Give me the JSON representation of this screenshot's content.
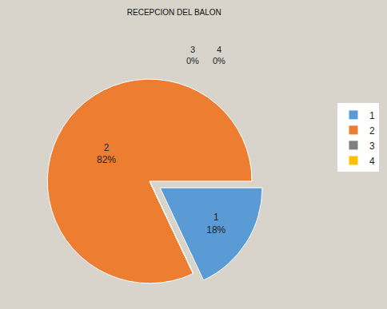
{
  "chart_data": {
    "type": "pie",
    "title": "RECEPCION DEL BALON",
    "categories": [
      "1",
      "2",
      "3",
      "4"
    ],
    "values": [
      18,
      82,
      0,
      0
    ],
    "value_labels": [
      "18%",
      "82%",
      "0%",
      "0%"
    ],
    "colors": [
      "#5b9bd5",
      "#ed7d31",
      "#7f7f7f",
      "#ffc000"
    ],
    "data_labels": true,
    "legend": "right"
  }
}
